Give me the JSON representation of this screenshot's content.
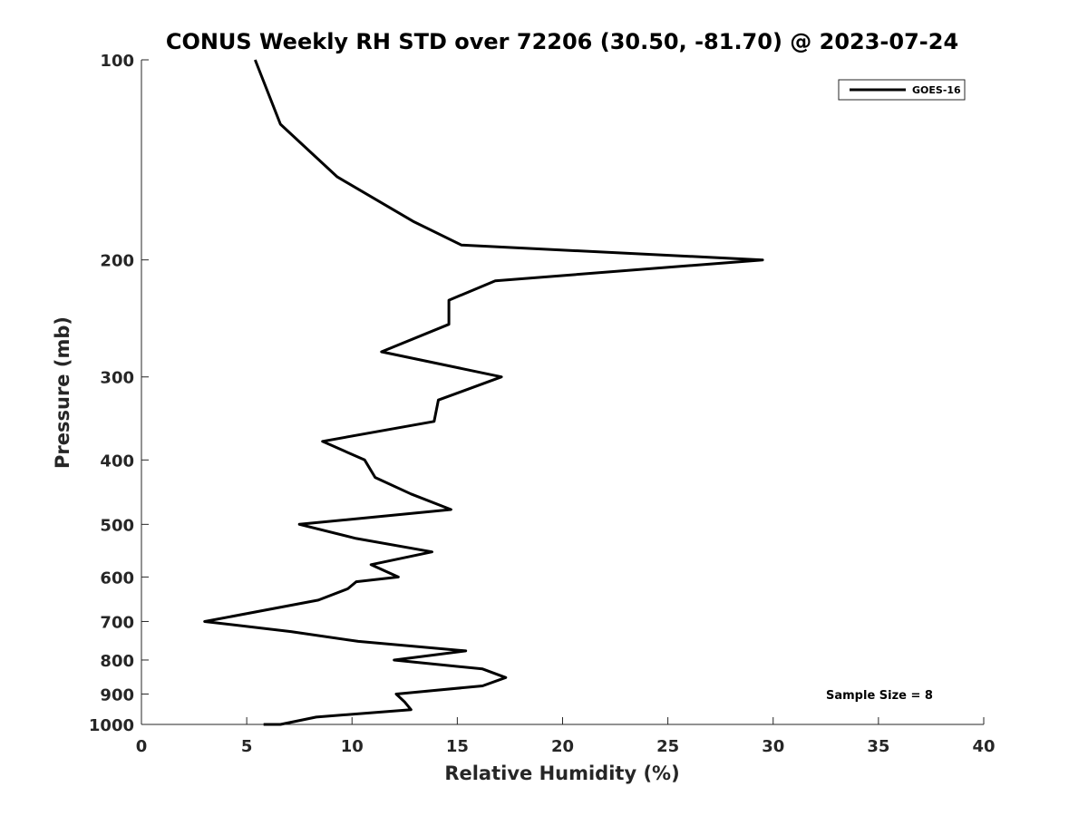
{
  "chart_data": {
    "type": "line",
    "title": "CONUS Weekly RH STD over 72206 (30.50, -81.70) @ 2023-07-24",
    "xlabel": "Relative Humidity (%)",
    "ylabel": "Pressure (mb)",
    "xlim": [
      0,
      40
    ],
    "ylim": [
      100,
      1000
    ],
    "y_scale": "log",
    "y_reversed": true,
    "x_ticks": [
      "0",
      "5",
      "10",
      "15",
      "20",
      "25",
      "30",
      "35",
      "40"
    ],
    "y_ticks": [
      "100",
      "200",
      "300",
      "400",
      "500",
      "600",
      "700",
      "800",
      "900",
      "1000"
    ],
    "grid": false,
    "legend_position": "top-right",
    "annotation": "Sample Size = 8",
    "series": [
      {
        "name": "GOES-16",
        "color": "#000000",
        "points": [
          [
            5.4,
            100
          ],
          [
            6.6,
            125
          ],
          [
            9.3,
            150
          ],
          [
            12.9,
            175
          ],
          [
            15.2,
            190
          ],
          [
            29.5,
            200
          ],
          [
            16.8,
            215
          ],
          [
            14.6,
            230
          ],
          [
            14.6,
            250
          ],
          [
            11.4,
            275
          ],
          [
            17.1,
            300
          ],
          [
            14.1,
            325
          ],
          [
            13.9,
            350
          ],
          [
            8.6,
            375
          ],
          [
            10.6,
            400
          ],
          [
            11.1,
            425
          ],
          [
            12.8,
            450
          ],
          [
            14.7,
            475
          ],
          [
            7.5,
            500
          ],
          [
            10.2,
            525
          ],
          [
            13.8,
            550
          ],
          [
            10.9,
            575
          ],
          [
            12.2,
            600
          ],
          [
            10.2,
            610
          ],
          [
            9.8,
            625
          ],
          [
            8.4,
            650
          ],
          [
            3.0,
            700
          ],
          [
            7.1,
            725
          ],
          [
            10.3,
            750
          ],
          [
            15.4,
            775
          ],
          [
            12.0,
            800
          ],
          [
            16.2,
            825
          ],
          [
            17.3,
            850
          ],
          [
            16.2,
            875
          ],
          [
            12.1,
            900
          ],
          [
            12.5,
            925
          ],
          [
            12.8,
            950
          ],
          [
            8.3,
            975
          ],
          [
            6.6,
            1000
          ],
          [
            5.8,
            1000
          ]
        ]
      }
    ]
  }
}
